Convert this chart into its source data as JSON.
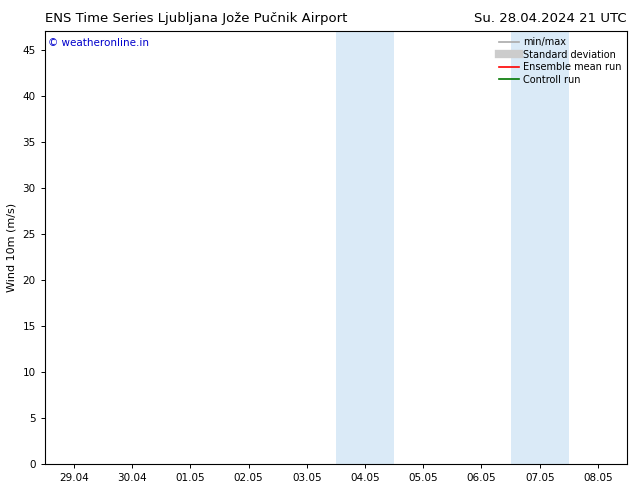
{
  "title_left": "ENS Time Series Ljubljana Jože Pučnik Airport",
  "title_right": "Su. 28.04.2024 21 UTC",
  "ylabel": "Wind 10m (m/s)",
  "watermark": "© weatheronline.in",
  "watermark_color": "#0000cc",
  "background_color": "#ffffff",
  "plot_bg_color": "#ffffff",
  "shaded_band_color": "#daeaf7",
  "x_ticks": [
    "29.04",
    "30.04",
    "01.05",
    "02.05",
    "03.05",
    "04.05",
    "05.05",
    "06.05",
    "07.05",
    "08.05"
  ],
  "x_tick_positions": [
    0,
    1,
    2,
    3,
    4,
    5,
    6,
    7,
    8,
    9
  ],
  "xlim": [
    -0.5,
    9.5
  ],
  "ylim": [
    0,
    47
  ],
  "yticks": [
    0,
    5,
    10,
    15,
    20,
    25,
    30,
    35,
    40,
    45
  ],
  "shaded_regions": [
    {
      "xmin": 4.5,
      "xmax": 5.0
    },
    {
      "xmin": 5.0,
      "xmax": 5.5
    },
    {
      "xmin": 7.5,
      "xmax": 8.0
    },
    {
      "xmin": 8.0,
      "xmax": 8.5
    }
  ],
  "legend_items": [
    {
      "label": "min/max",
      "color": "#aaaaaa",
      "lw": 1.2,
      "style": "solid"
    },
    {
      "label": "Standard deviation",
      "color": "#cccccc",
      "lw": 6,
      "style": "solid"
    },
    {
      "label": "Ensemble mean run",
      "color": "#ff0000",
      "lw": 1.2,
      "style": "solid"
    },
    {
      "label": "Controll run",
      "color": "#007700",
      "lw": 1.2,
      "style": "solid"
    }
  ],
  "title_fontsize": 9.5,
  "axis_label_fontsize": 8,
  "tick_fontsize": 7.5,
  "watermark_fontsize": 7.5,
  "legend_fontsize": 7.0
}
